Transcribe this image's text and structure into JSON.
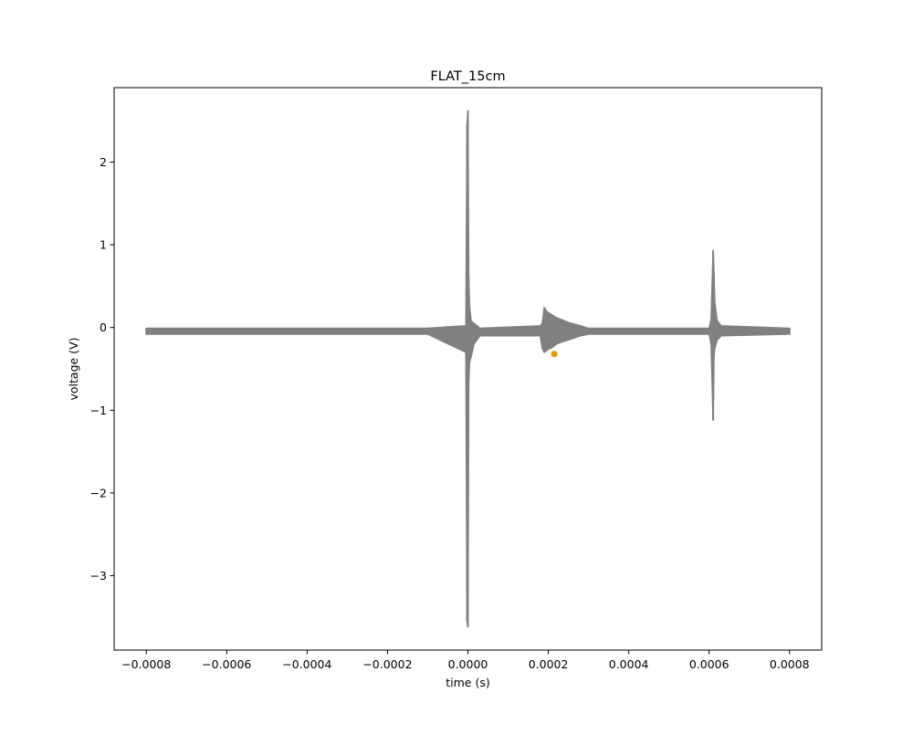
{
  "chart_data": {
    "type": "line",
    "title": "FLAT_15cm",
    "xlabel": "time (s)",
    "ylabel": "voltage (V)",
    "xlim": [
      -0.00088,
      0.00088
    ],
    "ylim": [
      -3.9,
      2.9
    ],
    "grid": false,
    "xticks": [
      {
        "value": -0.0008,
        "label": "−0.0008"
      },
      {
        "value": -0.0006,
        "label": "−0.0006"
      },
      {
        "value": -0.0004,
        "label": "−0.0004"
      },
      {
        "value": -0.0002,
        "label": "−0.0002"
      },
      {
        "value": 0.0,
        "label": "0.0000"
      },
      {
        "value": 0.0002,
        "label": "0.0002"
      },
      {
        "value": 0.0004,
        "label": "0.0004"
      },
      {
        "value": 0.0006,
        "label": "0.0006"
      },
      {
        "value": 0.0008,
        "label": "0.0008"
      }
    ],
    "yticks": [
      {
        "value": 2,
        "label": "2"
      },
      {
        "value": 1,
        "label": "1"
      },
      {
        "value": 0,
        "label": "0"
      },
      {
        "value": -1,
        "label": "−1"
      },
      {
        "value": -2,
        "label": "−2"
      },
      {
        "value": -3,
        "label": "−3"
      }
    ],
    "series": [
      {
        "color": "#808080",
        "baseline_band": [
          -0.08,
          -0.01
        ],
        "x": [
          -0.0008,
          -0.0001,
          -5e-06,
          -2e-06,
          0.0,
          2e-06,
          4e-06,
          8e-06,
          1.5e-05,
          3e-05,
          0.00018,
          0.000185,
          0.00019,
          0.000195,
          0.0002,
          0.00021,
          0.00022,
          0.00023,
          0.00025,
          0.00028,
          0.0003,
          0.0006,
          0.000605,
          0.00061,
          0.000612,
          0.000614,
          0.00062,
          0.00063,
          0.0008
        ],
        "y_high": [
          -0.01,
          -0.01,
          0.02,
          2.45,
          2.62,
          0.6,
          0.25,
          0.08,
          0.05,
          -0.01,
          0.02,
          0.05,
          0.24,
          0.2,
          0.18,
          0.15,
          0.12,
          0.1,
          0.06,
          0.02,
          -0.01,
          -0.01,
          0.1,
          0.93,
          0.65,
          0.3,
          0.08,
          0.02,
          -0.01
        ],
        "y_low": [
          -0.08,
          -0.08,
          -0.3,
          -3.55,
          -3.62,
          -0.65,
          -0.42,
          -0.35,
          -0.2,
          -0.1,
          -0.1,
          -0.25,
          -0.3,
          -0.28,
          -0.26,
          -0.24,
          -0.2,
          -0.18,
          -0.15,
          -0.1,
          -0.08,
          -0.08,
          -0.2,
          -1.12,
          -0.35,
          -0.25,
          -0.15,
          -0.1,
          -0.08
        ]
      }
    ],
    "markers": [
      {
        "x": 0.000215,
        "y": -0.32,
        "color": "#d4a017"
      }
    ]
  }
}
